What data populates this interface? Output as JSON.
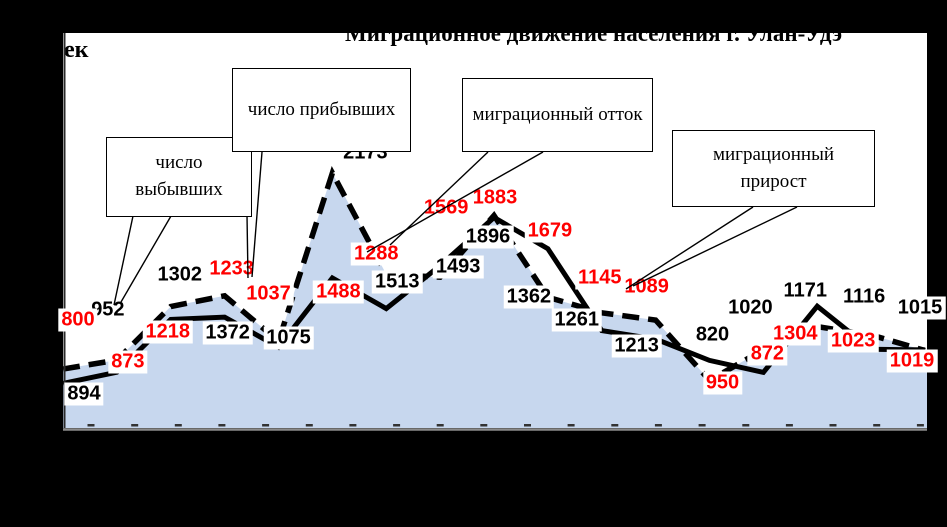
{
  "title": "Миграционное движение населения г. Улан-Удэ",
  "y_axis_fragment": "ек",
  "callouts": [
    {
      "label": "число выбывших"
    },
    {
      "label": "число прибывших"
    },
    {
      "label": "миграционный отток"
    },
    {
      "label": "миграционный прирост"
    }
  ],
  "colors": {
    "background": "#000000",
    "plot_background": "#ffffff",
    "area_fill": "#c7d7ee",
    "line": "#000000",
    "arrivals_label": "#000000",
    "departures_label": "#ff0000",
    "axis": "#8a8a8a",
    "tick": "#333333"
  },
  "chart_data": {
    "type": "line",
    "title": "Миграционное движение населения г. Улан-Удэ",
    "y_axis_title_visible_fragment": "ек",
    "x_tick_labels": "hidden (cropped by black band)",
    "legend_position": "callout text boxes with leader lines",
    "grid": false,
    "series": [
      {
        "name": "число прибывших",
        "line_style": "thick dashed black line with light-blue area fill below",
        "label_color": "#000000",
        "values": [
          894,
          952,
          1302,
          1372,
          1075,
          2173,
          1513,
          1493,
          1896,
          1362,
          1261,
          1213,
          820,
          1020,
          1171,
          1116,
          1015
        ]
      },
      {
        "name": "число выбывших",
        "line_style": "thick solid black line",
        "label_color": "#ff0000",
        "values": [
          800,
          873,
          1218,
          1233,
          1037,
          1488,
          1288,
          1569,
          1883,
          1679,
          1145,
          1089,
          950,
          872,
          1304,
          1023,
          1019
        ]
      }
    ],
    "annotations": [
      "число выбывших",
      "число прибывших",
      "миграционный отток",
      "миграционный прирост"
    ]
  }
}
